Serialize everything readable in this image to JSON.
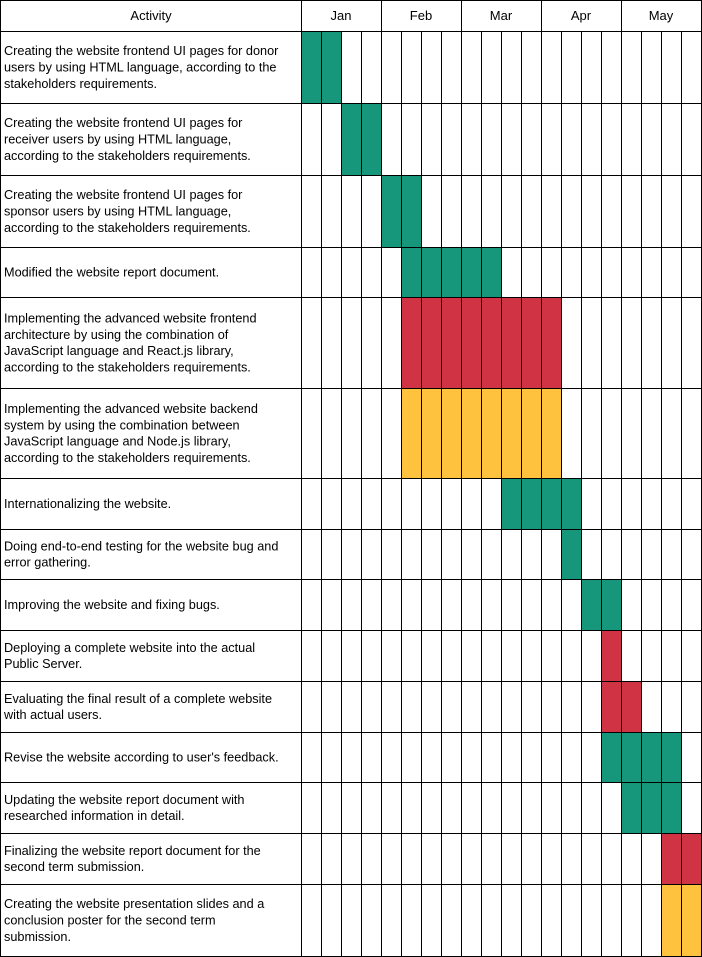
{
  "header": {
    "activity_label": "Activity",
    "months": [
      "Jan",
      "Feb",
      "Mar",
      "Apr",
      "May"
    ]
  },
  "colors": {
    "green": "#16967A",
    "red": "#CF3344",
    "yellow": "#FFC23E",
    "grid": "#000000"
  },
  "weeks_per_month": 4,
  "activities": [
    {
      "lines": [
        "Creating the website frontend UI pages for donor",
        "users by using HTML language, according to the",
        "stakeholders requirements."
      ],
      "bars": [
        {
          "start": 0,
          "end": 2,
          "color": "green"
        }
      ]
    },
    {
      "lines": [
        "Creating the website frontend UI pages for",
        "receiver users by using HTML language,",
        "according to the stakeholders requirements."
      ],
      "bars": [
        {
          "start": 2,
          "end": 4,
          "color": "green"
        }
      ]
    },
    {
      "lines": [
        "Creating the website frontend UI pages for",
        "sponsor users by using HTML language,",
        "according to the stakeholders requirements."
      ],
      "bars": [
        {
          "start": 4,
          "end": 6,
          "color": "green"
        }
      ]
    },
    {
      "lines": [
        "Modified the website report document."
      ],
      "bars": [
        {
          "start": 5,
          "end": 10,
          "color": "green"
        }
      ]
    },
    {
      "lines": [
        "Implementing the advanced website frontend",
        "architecture by using the combination of",
        "JavaScript language and React.js library,",
        "according to the stakeholders requirements."
      ],
      "bars": [
        {
          "start": 5,
          "end": 13,
          "color": "red"
        }
      ]
    },
    {
      "lines": [
        "Implementing the advanced website backend",
        "system by using the combination between",
        "JavaScript language and Node.js library,",
        "according to the stakeholders requirements."
      ],
      "bars": [
        {
          "start": 5,
          "end": 13,
          "color": "yellow"
        }
      ]
    },
    {
      "lines": [
        "Internationalizing the website."
      ],
      "bars": [
        {
          "start": 10,
          "end": 14,
          "color": "green"
        }
      ]
    },
    {
      "lines": [
        "Doing end-to-end testing for the website bug and",
        "error gathering."
      ],
      "bars": [
        {
          "start": 13,
          "end": 14,
          "color": "green"
        }
      ]
    },
    {
      "lines": [
        "Improving the website and fixing bugs."
      ],
      "bars": [
        {
          "start": 14,
          "end": 16,
          "color": "green"
        }
      ]
    },
    {
      "lines": [
        "Deploying a complete website into the actual",
        "Public Server."
      ],
      "bars": [
        {
          "start": 15,
          "end": 16,
          "color": "red"
        }
      ]
    },
    {
      "lines": [
        "Evaluating the final result of a complete website",
        "with actual users."
      ],
      "bars": [
        {
          "start": 15,
          "end": 17,
          "color": "red"
        }
      ]
    },
    {
      "lines": [
        "Revise the website according to user's feedback."
      ],
      "bars": [
        {
          "start": 15,
          "end": 19,
          "color": "green"
        }
      ]
    },
    {
      "lines": [
        "Updating the website report document with",
        "researched information in detail."
      ],
      "bars": [
        {
          "start": 16,
          "end": 19,
          "color": "green"
        }
      ]
    },
    {
      "lines": [
        "Finalizing  the website report document for the",
        "second term submission."
      ],
      "bars": [
        {
          "start": 18,
          "end": 20,
          "color": "red"
        }
      ]
    },
    {
      "lines": [
        "Creating the website presentation slides and a",
        "conclusion poster for the second term",
        "submission."
      ],
      "bars": [
        {
          "start": 18,
          "end": 20,
          "color": "yellow"
        }
      ]
    }
  ]
}
